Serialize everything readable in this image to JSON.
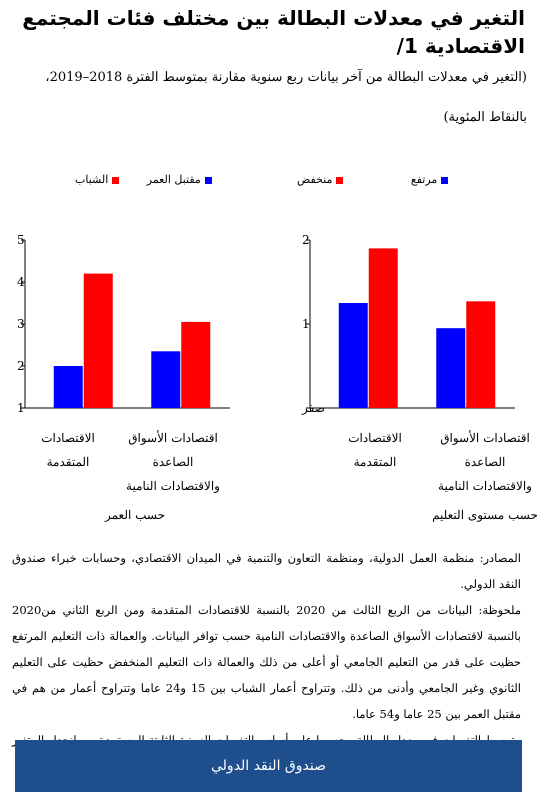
{
  "title": "التغير في معدلات البطالة بين مختلف فئات المجتمع الاقتصادية 1/",
  "subtitle": "(التغير في معدلات البطالة من آخر بيانات ربع سنوية مقارنة بمتوسط الفترة 2018–2019، بالنقاط المئوية)",
  "colors": {
    "blue": "#0000ff",
    "red": "#ff0000",
    "axis": "#000000",
    "footer": "#1f4e8c"
  },
  "chart_data": [
    {
      "type": "bar",
      "panel_label": "حسب مستوى التعليم",
      "categories": [
        "اقتصادات الأسواق الصاعدة والاقتصادات النامية",
        "الاقتصادات المتقدمة"
      ],
      "category_lines": [
        [
          "اقتصادات الأسواق",
          "الصاعدة",
          "والاقتصادات النامية"
        ],
        [
          "الاقتصادات",
          "المتقدمة"
        ]
      ],
      "series": [
        {
          "name": "مرتفع",
          "color": "#0000ff",
          "values": [
            0.95,
            1.25
          ]
        },
        {
          "name": "منخفض",
          "color": "#ff0000",
          "values": [
            1.27,
            1.9
          ]
        }
      ],
      "ylim": [
        0,
        2
      ],
      "yticks": [
        {
          "v": 0,
          "label": "صفر"
        },
        {
          "v": 1,
          "label": "1"
        },
        {
          "v": 2,
          "label": "2"
        }
      ]
    },
    {
      "type": "bar",
      "panel_label": "حسب العمر",
      "categories": [
        "اقتصادات الأسواق الصاعدة والاقتصادات النامية",
        "الاقتصادات المتقدمة"
      ],
      "category_lines": [
        [
          "اقتصادات الأسواق",
          "الصاعدة",
          "والاقتصادات النامية"
        ],
        [
          "الاقتصادات",
          "المتقدمة"
        ]
      ],
      "series": [
        {
          "name": "مقتبل العمر",
          "color": "#0000ff",
          "values": [
            2.35,
            2
          ]
        },
        {
          "name": "الشباب",
          "color": "#ff0000",
          "values": [
            3.05,
            4.2
          ]
        }
      ],
      "ylim": [
        1,
        5
      ],
      "yticks": [
        {
          "v": 1,
          "label": "1"
        },
        {
          "v": 2,
          "label": "2"
        },
        {
          "v": 3,
          "label": "3"
        },
        {
          "v": 4,
          "label": "4"
        },
        {
          "v": 5,
          "label": "5"
        }
      ]
    }
  ],
  "notes": {
    "sources": "المصادر: منظمة العمل الدولية، ومنظمة التعاون والتنمية في الميدان الاقتصادي، وحسابات خبراء صندوق النقد الدولي.",
    "note": "ملحوظة: البيانات من الربع الثالث من 2020 بالنسبة للاقتصادات المتقدمة ومن الربع الثاني من2020 بالنسبة لاقتصادات الأسواق الصاعدة والاقتصادات النامية حسب توافر البيانات. والعمالة ذات التعليم المرتفع حظيت على قدر من التعليم الجامعي أو أعلى من ذلك والعمالة ذات التعليم المنخفض حظيت على التعليم الثانوي وغير الجامعي وأدنى من ذلك. وتتراوح أعمار الشباب بين 15 و24 عاما وتتراوح أعمار من هم في مقتبل العمر بين 25 عاما و54 عاما.",
    "footnote": "متوسط التغيرات في معدل البطالة محسوبا على أساس التغيرات الزمنية الثابتة المستمدة من انحدار المتغير على الآثار القطرية والزمنية الثابتة لمراعاة التغيرات في نطاق تغطية العينة."
  },
  "footer": {
    "label": "صندوق النقد الدولي"
  }
}
